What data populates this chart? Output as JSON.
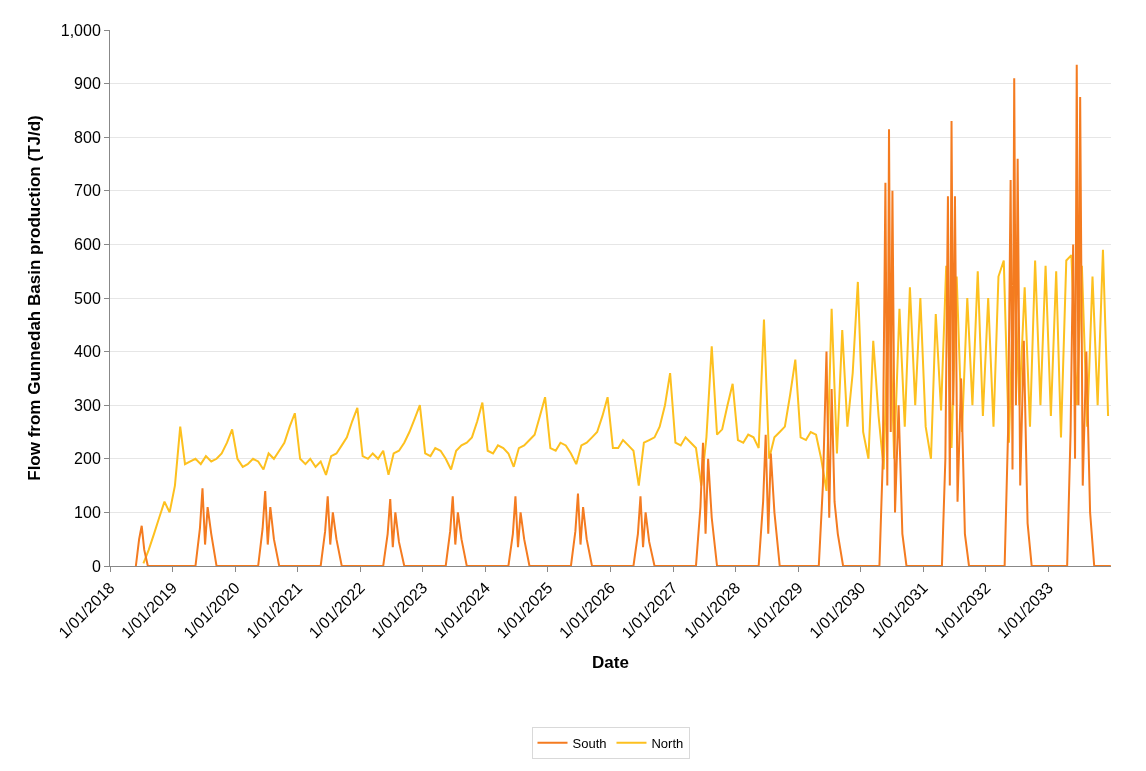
{
  "chart_data": {
    "type": "line",
    "xlabel": "Date",
    "ylabel": "Flow from Gunnedah Basin production (TJ/d)",
    "xlim": [
      "2018-01-01",
      "2034-01-01"
    ],
    "xticks": [
      {
        "value": "2018-01-01",
        "label": "1/01/2018"
      },
      {
        "value": "2019-01-01",
        "label": "1/01/2019"
      },
      {
        "value": "2020-01-01",
        "label": "1/01/2020"
      },
      {
        "value": "2021-01-01",
        "label": "1/01/2021"
      },
      {
        "value": "2022-01-01",
        "label": "1/01/2022"
      },
      {
        "value": "2023-01-01",
        "label": "1/01/2023"
      },
      {
        "value": "2024-01-01",
        "label": "1/01/2024"
      },
      {
        "value": "2025-01-01",
        "label": "1/01/2025"
      },
      {
        "value": "2026-01-01",
        "label": "1/01/2026"
      },
      {
        "value": "2027-01-01",
        "label": "1/01/2027"
      },
      {
        "value": "2028-01-01",
        "label": "1/01/2028"
      },
      {
        "value": "2029-01-01",
        "label": "1/01/2029"
      },
      {
        "value": "2030-01-01",
        "label": "1/01/2030"
      },
      {
        "value": "2031-01-01",
        "label": "1/01/2031"
      },
      {
        "value": "2032-01-01",
        "label": "1/01/2032"
      },
      {
        "value": "2033-01-01",
        "label": "1/01/2033"
      }
    ],
    "ylim": [
      0,
      1000
    ],
    "yticks": [
      0,
      100,
      200,
      300,
      400,
      500,
      600,
      700,
      800,
      900,
      {
        "value": 1000,
        "label": "1,000"
      }
    ],
    "grid": "y",
    "legend": "bottom",
    "line_style": "solid",
    "series": [
      {
        "name": "South",
        "color": "#f47b20",
        "x": [
          "2018-06-01",
          "2018-06-20",
          "2018-07-05",
          "2018-07-20",
          "2018-08-10",
          "2019-05-15",
          "2019-06-10",
          "2019-06-25",
          "2019-07-10",
          "2019-07-25",
          "2019-08-15",
          "2019-09-15",
          "2020-05-15",
          "2020-06-10",
          "2020-06-25",
          "2020-07-10",
          "2020-07-25",
          "2020-08-15",
          "2020-09-15",
          "2021-05-15",
          "2021-06-10",
          "2021-06-25",
          "2021-07-10",
          "2021-07-25",
          "2021-08-15",
          "2021-09-15",
          "2022-05-15",
          "2022-06-10",
          "2022-06-25",
          "2022-07-10",
          "2022-07-25",
          "2022-08-15",
          "2022-09-15",
          "2023-05-15",
          "2023-06-10",
          "2023-06-25",
          "2023-07-10",
          "2023-07-25",
          "2023-08-15",
          "2023-09-15",
          "2024-05-15",
          "2024-06-10",
          "2024-06-25",
          "2024-07-10",
          "2024-07-25",
          "2024-08-15",
          "2024-09-15",
          "2025-05-15",
          "2025-06-10",
          "2025-06-25",
          "2025-07-10",
          "2025-07-25",
          "2025-08-15",
          "2025-09-15",
          "2026-05-15",
          "2026-06-10",
          "2026-06-25",
          "2026-07-10",
          "2026-07-25",
          "2026-08-15",
          "2026-09-15",
          "2027-05-15",
          "2027-06-10",
          "2027-06-25",
          "2027-07-10",
          "2027-07-25",
          "2027-08-15",
          "2027-09-15",
          "2028-05-15",
          "2028-06-10",
          "2028-06-25",
          "2028-07-10",
          "2028-07-25",
          "2028-08-15",
          "2028-09-15",
          "2029-05-01",
          "2029-05-25",
          "2029-06-15",
          "2029-07-01",
          "2029-07-15",
          "2029-08-01",
          "2029-08-20",
          "2029-09-20",
          "2030-04-20",
          "2030-05-10",
          "2030-05-25",
          "2030-06-05",
          "2030-06-15",
          "2030-06-25",
          "2030-07-05",
          "2030-07-20",
          "2030-08-10",
          "2030-09-01",
          "2030-09-25",
          "2031-04-20",
          "2031-05-10",
          "2031-05-25",
          "2031-06-05",
          "2031-06-15",
          "2031-06-25",
          "2031-07-05",
          "2031-07-20",
          "2031-08-10",
          "2031-09-01",
          "2031-09-25",
          "2032-04-20",
          "2032-05-10",
          "2032-05-25",
          "2032-06-05",
          "2032-06-15",
          "2032-06-25",
          "2032-07-05",
          "2032-07-20",
          "2032-08-10",
          "2032-09-01",
          "2032-09-25",
          "2033-04-20",
          "2033-05-10",
          "2033-05-25",
          "2033-06-05",
          "2033-06-15",
          "2033-06-25",
          "2033-07-05",
          "2033-07-20",
          "2033-08-10",
          "2033-09-01",
          "2033-09-25",
          "2033-12-31"
        ],
        "values": [
          0,
          50,
          75,
          30,
          0,
          0,
          70,
          145,
          40,
          110,
          60,
          0,
          0,
          70,
          140,
          40,
          110,
          50,
          0,
          0,
          65,
          130,
          40,
          100,
          50,
          0,
          0,
          60,
          125,
          35,
          100,
          45,
          0,
          0,
          65,
          130,
          40,
          100,
          50,
          0,
          0,
          60,
          130,
          35,
          100,
          50,
          0,
          0,
          65,
          135,
          40,
          110,
          50,
          0,
          0,
          60,
          130,
          35,
          100,
          45,
          0,
          0,
          110,
          230,
          60,
          200,
          90,
          0,
          0,
          120,
          245,
          60,
          210,
          100,
          0,
          0,
          150,
          400,
          90,
          330,
          120,
          60,
          0,
          0,
          200,
          715,
          150,
          815,
          250,
          700,
          100,
          300,
          60,
          0,
          0,
          200,
          690,
          150,
          830,
          300,
          690,
          120,
          350,
          60,
          0,
          0,
          250,
          720,
          180,
          910,
          300,
          760,
          150,
          420,
          80,
          0,
          0,
          250,
          600,
          200,
          935,
          300,
          875,
          150,
          400,
          100,
          0,
          0
        ]
      },
      {
        "name": "North",
        "color": "#fdc01f",
        "x": [
          "2018-07-15",
          "2018-08-15",
          "2018-09-15",
          "2018-10-15",
          "2018-11-15",
          "2018-12-15",
          "2019-01-15",
          "2019-02-15",
          "2019-03-15",
          "2019-04-15",
          "2019-05-15",
          "2019-06-15",
          "2019-07-15",
          "2019-08-15",
          "2019-09-15",
          "2019-10-15",
          "2019-11-15",
          "2019-12-15",
          "2020-01-15",
          "2020-02-15",
          "2020-03-15",
          "2020-04-15",
          "2020-05-15",
          "2020-06-15",
          "2020-07-15",
          "2020-08-15",
          "2020-09-15",
          "2020-10-15",
          "2020-11-15",
          "2020-12-15",
          "2021-01-15",
          "2021-02-15",
          "2021-03-15",
          "2021-04-15",
          "2021-05-15",
          "2021-06-15",
          "2021-07-15",
          "2021-08-15",
          "2021-09-15",
          "2021-10-15",
          "2021-11-15",
          "2021-12-15",
          "2022-01-15",
          "2022-02-15",
          "2022-03-15",
          "2022-04-15",
          "2022-05-15",
          "2022-06-15",
          "2022-07-15",
          "2022-08-15",
          "2022-09-15",
          "2022-10-15",
          "2022-11-15",
          "2022-12-15",
          "2023-01-15",
          "2023-02-15",
          "2023-03-15",
          "2023-04-15",
          "2023-05-15",
          "2023-06-15",
          "2023-07-15",
          "2023-08-15",
          "2023-09-15",
          "2023-10-15",
          "2023-11-15",
          "2023-12-15",
          "2024-01-15",
          "2024-02-15",
          "2024-03-15",
          "2024-04-15",
          "2024-05-15",
          "2024-06-15",
          "2024-07-15",
          "2024-08-15",
          "2024-09-15",
          "2024-10-15",
          "2024-11-15",
          "2024-12-15",
          "2025-01-15",
          "2025-02-15",
          "2025-03-15",
          "2025-04-15",
          "2025-05-15",
          "2025-06-15",
          "2025-07-15",
          "2025-08-15",
          "2025-09-15",
          "2025-10-15",
          "2025-11-15",
          "2025-12-15",
          "2026-01-15",
          "2026-02-15",
          "2026-03-15",
          "2026-04-15",
          "2026-05-15",
          "2026-06-15",
          "2026-07-15",
          "2026-08-15",
          "2026-09-15",
          "2026-10-15",
          "2026-11-15",
          "2026-12-15",
          "2027-01-15",
          "2027-02-15",
          "2027-03-15",
          "2027-04-15",
          "2027-05-15",
          "2027-06-15",
          "2027-07-15",
          "2027-08-15",
          "2027-09-15",
          "2027-10-15",
          "2027-11-15",
          "2027-12-15",
          "2028-01-15",
          "2028-02-15",
          "2028-03-15",
          "2028-04-15",
          "2028-05-15",
          "2028-06-15",
          "2028-07-15",
          "2028-08-15",
          "2028-09-15",
          "2028-10-15",
          "2028-11-15",
          "2028-12-15",
          "2029-01-15",
          "2029-02-15",
          "2029-03-15",
          "2029-04-15",
          "2029-05-15",
          "2029-06-15",
          "2029-07-15",
          "2029-08-15",
          "2029-09-15",
          "2029-10-15",
          "2029-11-15",
          "2029-12-15",
          "2030-01-15",
          "2030-02-15",
          "2030-03-15",
          "2030-04-15",
          "2030-05-15",
          "2030-06-15",
          "2030-07-15",
          "2030-08-15",
          "2030-09-15",
          "2030-10-15",
          "2030-11-15",
          "2030-12-15",
          "2031-01-15",
          "2031-02-15",
          "2031-03-15",
          "2031-04-15",
          "2031-05-15",
          "2031-06-15",
          "2031-07-15",
          "2031-08-15",
          "2031-09-15",
          "2031-10-15",
          "2031-11-15",
          "2031-12-15",
          "2032-01-15",
          "2032-02-15",
          "2032-03-15",
          "2032-04-15",
          "2032-05-15",
          "2032-06-15",
          "2032-07-15",
          "2032-08-15",
          "2032-09-15",
          "2032-10-15",
          "2032-11-15",
          "2032-12-15",
          "2033-01-15",
          "2033-02-15",
          "2033-03-15",
          "2033-04-15",
          "2033-05-15",
          "2033-06-15",
          "2033-07-15",
          "2033-08-15",
          "2033-09-15",
          "2033-10-15",
          "2033-11-15",
          "2033-12-15"
        ],
        "values": [
          5,
          30,
          60,
          90,
          120,
          100,
          150,
          260,
          190,
          195,
          200,
          190,
          205,
          195,
          200,
          210,
          230,
          255,
          200,
          185,
          190,
          200,
          195,
          180,
          210,
          200,
          215,
          230,
          260,
          285,
          200,
          190,
          200,
          185,
          195,
          170,
          205,
          210,
          225,
          240,
          270,
          295,
          205,
          200,
          210,
          200,
          215,
          170,
          210,
          215,
          230,
          250,
          275,
          300,
          210,
          205,
          220,
          215,
          200,
          180,
          215,
          225,
          230,
          240,
          270,
          305,
          215,
          210,
          225,
          220,
          210,
          185,
          220,
          225,
          235,
          245,
          280,
          315,
          220,
          215,
          230,
          225,
          210,
          190,
          225,
          230,
          240,
          250,
          280,
          315,
          220,
          220,
          235,
          225,
          215,
          150,
          230,
          235,
          240,
          260,
          300,
          360,
          230,
          225,
          240,
          230,
          220,
          150,
          240,
          410,
          245,
          255,
          300,
          340,
          235,
          230,
          245,
          240,
          220,
          460,
          200,
          240,
          250,
          260,
          320,
          385,
          240,
          235,
          250,
          245,
          200,
          140,
          480,
          210,
          440,
          260,
          360,
          530,
          250,
          200,
          420,
          280,
          180,
          530,
          200,
          480,
          260,
          520,
          300,
          500,
          260,
          200,
          470,
          290,
          560,
          220,
          540,
          250,
          500,
          300,
          550,
          280,
          500,
          260,
          540,
          570,
          230,
          560,
          300,
          520,
          260,
          570,
          300,
          560,
          280,
          550,
          240,
          570,
          580,
          300,
          560,
          260,
          540,
          300,
          590,
          280
        ]
      }
    ]
  }
}
